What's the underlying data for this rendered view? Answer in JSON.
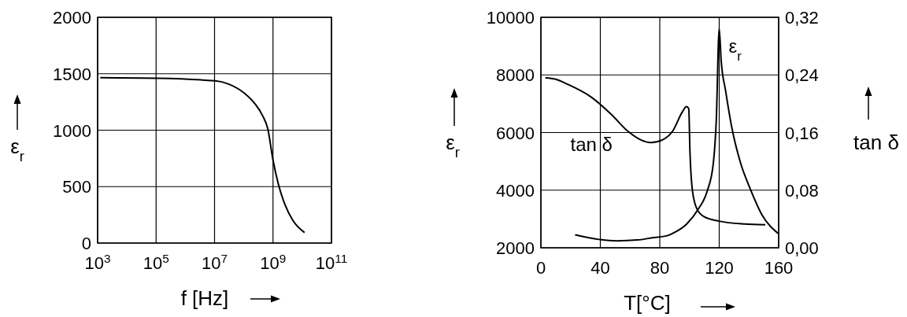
{
  "chart_data": [
    {
      "type": "line",
      "xlabel": "f [Hz]",
      "ylabel": "ε$_{r}$",
      "log": "x",
      "grid": true,
      "xlim": [
        1000,
        100000000000
      ],
      "ylim": [
        0,
        2000
      ],
      "xticks": [
        {
          "value": 1000,
          "label": "10$^{3}$"
        },
        {
          "value": 100000,
          "label": "10$^{5}$"
        },
        {
          "value": 10000000,
          "label": "10$^{7}$"
        },
        {
          "value": 1000000000,
          "label": "10$^{9}$"
        },
        {
          "value": 100000000000,
          "label": "10$^{11}$"
        }
      ],
      "yticks": [
        0,
        500,
        1000,
        1500,
        2000
      ],
      "series": [
        {
          "color": "#000000",
          "x": [
            1230,
            112000,
            10700000,
            30200000,
            105000000,
            240000000,
            437000000,
            661000000,
            1000000000,
            1510000000,
            2570000000,
            4790000000,
            12000000000
          ],
          "values": [
            1465,
            1460,
            1437,
            1409,
            1328,
            1235,
            1130,
            1014,
            735,
            526,
            340,
            200,
            93
          ]
        }
      ]
    },
    {
      "type": "line",
      "xlabel": "T[°C]",
      "ylabel": "ε$_{r}$",
      "y2label": "tan δ",
      "grid": true,
      "xlim": [
        0,
        160
      ],
      "ylim": [
        2000,
        10000
      ],
      "y2lim": [
        0,
        0.32
      ],
      "xticks": [
        0,
        40,
        80,
        120,
        160
      ],
      "yticks": [
        2000,
        4000,
        6000,
        8000,
        10000
      ],
      "y2ticks": [
        {
          "value": 0,
          "label": "0,00"
        },
        {
          "value": 0.08,
          "label": "0,08"
        },
        {
          "value": 0.16,
          "label": "0,16"
        },
        {
          "value": 0.24,
          "label": "0,24"
        },
        {
          "value": 0.32,
          "label": "0,32"
        }
      ],
      "series": [
        {
          "name": "tan δ",
          "axis": "y2",
          "color": "#000000",
          "x": [
            3,
            10,
            18,
            34,
            47,
            59,
            67,
            74,
            82,
            89,
            95,
            98,
            99.5,
            100.3,
            102,
            105,
            110,
            120,
            137,
            151
          ],
          "values": [
            0.236,
            0.234,
            0.227,
            0.209,
            0.186,
            0.161,
            0.15,
            0.146,
            0.15,
            0.163,
            0.188,
            0.196,
            0.193,
            0.134,
            0.079,
            0.054,
            0.043,
            0.037,
            0.033,
            0.032
          ]
        },
        {
          "name": "ε$_{r}$",
          "color": "#000000",
          "x": [
            23,
            39,
            51,
            65,
            75,
            85,
            91,
            98,
            106,
            112,
            116,
            118,
            120,
            121.3,
            124.3,
            128.4,
            134.5,
            140.6,
            148.8,
            159.6
          ],
          "values": [
            2450,
            2290,
            2240,
            2270,
            2350,
            2420,
            2560,
            2820,
            3350,
            3980,
            4920,
            6400,
            9600,
            8500,
            7450,
            6190,
            4920,
            4080,
            3140,
            2500
          ]
        }
      ]
    }
  ]
}
